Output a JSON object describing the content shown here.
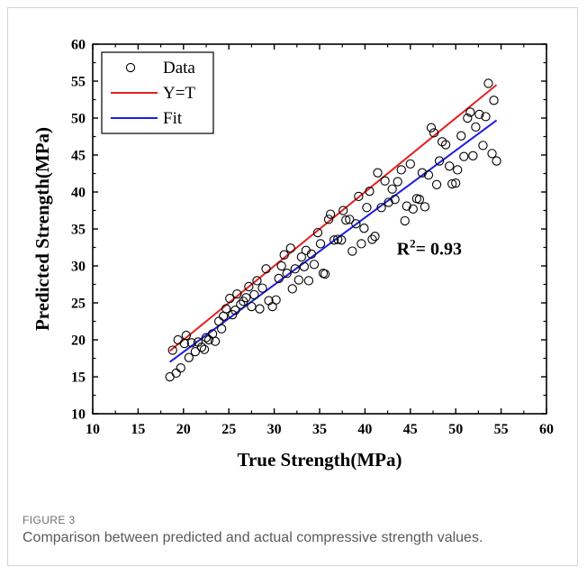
{
  "figure": {
    "label": "FIGURE 3",
    "caption": "Comparison between predicted and actual compressive strength values."
  },
  "chart_data": {
    "type": "scatter",
    "xlabel": "True Strength(MPa)",
    "ylabel": "Predicted Strength(MPa)",
    "xlim": [
      10,
      60
    ],
    "ylim": [
      10,
      60
    ],
    "xticks": [
      10,
      15,
      20,
      25,
      30,
      35,
      40,
      45,
      50,
      55,
      60
    ],
    "yticks": [
      10,
      15,
      20,
      25,
      30,
      35,
      40,
      45,
      50,
      55,
      60
    ],
    "legend": {
      "position": "top-left",
      "entries": [
        "Data",
        "Y=T",
        "Fit"
      ]
    },
    "annotation": {
      "prefix": "R",
      "sup": "2",
      "text": "= 0.93",
      "x": 43.5,
      "y": 31.5
    },
    "colors": {
      "ideal": "#e32222",
      "fit": "#1c1ce6",
      "points": "#000000"
    },
    "lines": [
      {
        "name": "Y=T",
        "x": [
          18.5,
          54.5
        ],
        "y": [
          18.5,
          54.5
        ]
      },
      {
        "name": "Fit",
        "x": [
          18.5,
          54.5
        ],
        "y": [
          17.0,
          49.7
        ]
      }
    ],
    "series": [
      {
        "name": "Data",
        "points": [
          [
            18.5,
            15.0
          ],
          [
            18.8,
            18.6
          ],
          [
            19.2,
            15.5
          ],
          [
            19.4,
            20.0
          ],
          [
            19.7,
            16.2
          ],
          [
            20.1,
            19.5
          ],
          [
            20.3,
            20.6
          ],
          [
            20.6,
            17.6
          ],
          [
            20.9,
            19.6
          ],
          [
            21.3,
            18.4
          ],
          [
            21.6,
            19.7
          ],
          [
            22.0,
            19.0
          ],
          [
            22.3,
            18.7
          ],
          [
            22.5,
            20.3
          ],
          [
            22.8,
            20.0
          ],
          [
            23.2,
            20.8
          ],
          [
            23.5,
            19.8
          ],
          [
            23.9,
            22.5
          ],
          [
            24.2,
            21.5
          ],
          [
            24.4,
            23.2
          ],
          [
            24.7,
            24.2
          ],
          [
            25.1,
            25.6
          ],
          [
            25.4,
            23.4
          ],
          [
            25.7,
            24.0
          ],
          [
            25.9,
            26.2
          ],
          [
            26.3,
            24.8
          ],
          [
            26.6,
            25.2
          ],
          [
            26.9,
            25.7
          ],
          [
            27.2,
            27.2
          ],
          [
            27.5,
            24.5
          ],
          [
            27.8,
            26.1
          ],
          [
            28.1,
            28.0
          ],
          [
            28.4,
            24.2
          ],
          [
            28.7,
            27.0
          ],
          [
            29.1,
            29.6
          ],
          [
            29.4,
            25.3
          ],
          [
            29.8,
            24.5
          ],
          [
            30.2,
            25.4
          ],
          [
            30.5,
            28.3
          ],
          [
            30.8,
            30.0
          ],
          [
            31.1,
            31.5
          ],
          [
            31.4,
            29.0
          ],
          [
            31.8,
            32.4
          ],
          [
            32.0,
            26.9
          ],
          [
            32.3,
            29.6
          ],
          [
            32.7,
            28.1
          ],
          [
            33.0,
            31.2
          ],
          [
            33.3,
            29.9
          ],
          [
            33.5,
            32.1
          ],
          [
            33.8,
            28.0
          ],
          [
            34.1,
            31.6
          ],
          [
            34.4,
            30.2
          ],
          [
            34.8,
            34.5
          ],
          [
            35.1,
            33.0
          ],
          [
            35.4,
            29.0
          ],
          [
            35.6,
            28.9
          ],
          [
            36.0,
            36.3
          ],
          [
            36.2,
            37.0
          ],
          [
            36.6,
            33.5
          ],
          [
            37.0,
            33.6
          ],
          [
            37.4,
            33.5
          ],
          [
            37.6,
            37.5
          ],
          [
            37.9,
            36.2
          ],
          [
            38.3,
            36.3
          ],
          [
            38.6,
            32.0
          ],
          [
            39.0,
            35.7
          ],
          [
            39.3,
            39.4
          ],
          [
            39.6,
            33.0
          ],
          [
            39.9,
            35.1
          ],
          [
            40.2,
            37.9
          ],
          [
            40.5,
            40.1
          ],
          [
            40.8,
            33.6
          ],
          [
            41.1,
            34.0
          ],
          [
            41.4,
            42.6
          ],
          [
            41.8,
            37.9
          ],
          [
            42.2,
            41.5
          ],
          [
            42.6,
            38.6
          ],
          [
            43.0,
            40.4
          ],
          [
            43.3,
            39.0
          ],
          [
            43.6,
            41.4
          ],
          [
            44.0,
            43.0
          ],
          [
            44.4,
            36.1
          ],
          [
            44.6,
            38.1
          ],
          [
            45.0,
            43.8
          ],
          [
            45.3,
            37.7
          ],
          [
            45.7,
            39.1
          ],
          [
            46.0,
            39.0
          ],
          [
            46.3,
            42.6
          ],
          [
            46.6,
            38.0
          ],
          [
            47.0,
            42.3
          ],
          [
            47.3,
            48.7
          ],
          [
            47.6,
            48.0
          ],
          [
            47.9,
            41.0
          ],
          [
            48.2,
            44.2
          ],
          [
            48.5,
            46.8
          ],
          [
            48.9,
            46.4
          ],
          [
            49.3,
            43.5
          ],
          [
            49.6,
            41.1
          ],
          [
            50.0,
            41.2
          ],
          [
            50.2,
            43.0
          ],
          [
            50.6,
            47.6
          ],
          [
            50.9,
            44.8
          ],
          [
            51.3,
            50.0
          ],
          [
            51.6,
            50.8
          ],
          [
            51.9,
            44.9
          ],
          [
            52.2,
            48.8
          ],
          [
            52.6,
            50.5
          ],
          [
            53.0,
            46.3
          ],
          [
            53.3,
            50.2
          ],
          [
            53.6,
            54.7
          ],
          [
            54.0,
            45.2
          ],
          [
            54.2,
            52.4
          ],
          [
            54.5,
            44.2
          ]
        ]
      }
    ]
  }
}
